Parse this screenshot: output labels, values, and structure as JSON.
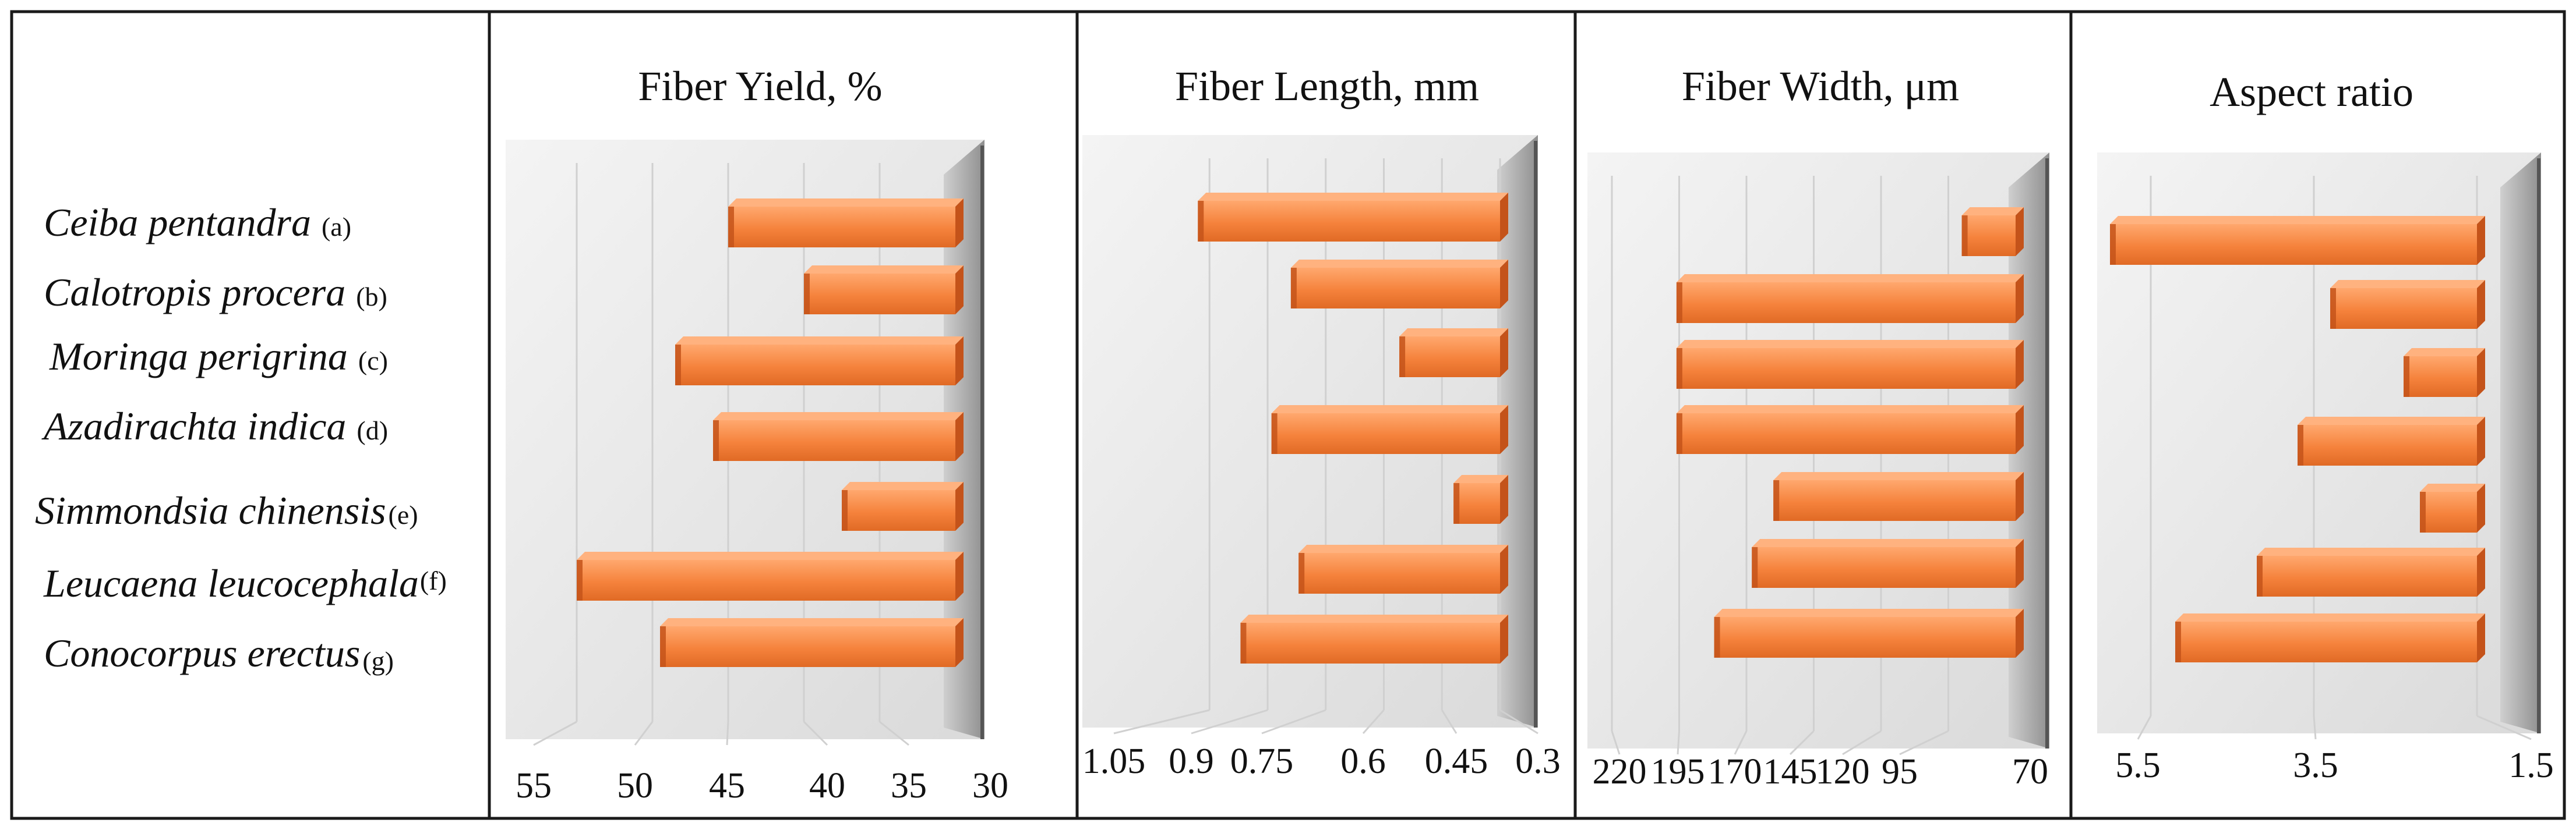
{
  "colors": {
    "bar_front": "#f78a45",
    "bar_top": "#ffb27f",
    "bar_end": "#c4531a",
    "wall_light": "#ececec",
    "wall_dark": "#9a9a9a",
    "frame": "#1a1a1a"
  },
  "species": [
    {
      "name": "Ceiba pentandra",
      "letter": "(a)"
    },
    {
      "name": "Calotropis procera",
      "letter": "(b)"
    },
    {
      "name": "Moringa perigrina",
      "letter": "(c)"
    },
    {
      "name": "Azadirachta indica",
      "letter": "(d)"
    },
    {
      "name": "Simmondsia chinensis",
      "letter": "(e)"
    },
    {
      "name": "Leucaena leucocephala",
      "letter": "(f)"
    },
    {
      "name": "Conocorpus erectus",
      "letter": "(g)"
    }
  ],
  "chart_data": [
    {
      "type": "bar",
      "orientation": "horizontal-3d",
      "title": "Fiber Yield, %",
      "categories": [
        "Ceiba pentandra",
        "Calotropis procera",
        "Moringa perigrina",
        "Azadirachta indica",
        "Simmondsia chinensis",
        "Leucaena leucocephala",
        "Conocorpus erectus"
      ],
      "values": [
        45,
        40,
        48.5,
        46,
        37.5,
        55,
        49.5
      ],
      "xlim": [
        30,
        56
      ],
      "x_reversed": true,
      "tick_values": [
        55,
        50,
        45,
        40,
        35,
        30
      ],
      "tick_labels": [
        "55",
        "50",
        "45",
        "40",
        "35",
        "30"
      ],
      "grid": true
    },
    {
      "type": "bar",
      "orientation": "horizontal-3d",
      "title": "Fiber Length, mm",
      "categories": [
        "Ceiba pentandra",
        "Calotropis procera",
        "Moringa perigrina",
        "Azadirachta indica",
        "Simmondsia chinensis",
        "Leucaena leucocephala",
        "Conocorpus erectus"
      ],
      "values": [
        1.08,
        0.84,
        0.56,
        0.89,
        0.42,
        0.82,
        0.97
      ],
      "xlim": [
        0.3,
        1.09
      ],
      "x_reversed": true,
      "tick_values": [
        1.05,
        0.9,
        0.75,
        0.6,
        0.45,
        0.3
      ],
      "tick_labels": [
        "1.05",
        "0.9",
        "0.75",
        "0.6",
        "0.45",
        "0.3"
      ],
      "grid": true
    },
    {
      "type": "bar",
      "orientation": "horizontal-3d",
      "title": "Fiber Width, μm",
      "categories": [
        "Ceiba pentandra",
        "Calotropis procera",
        "Moringa perigrina",
        "Azadirachta indica",
        "Simmondsia chinensis",
        "Leucaena leucocephala",
        "Conocorpus erectus"
      ],
      "values": [
        90,
        196,
        196,
        196,
        160,
        168,
        182
      ],
      "xlim": [
        70,
        222
      ],
      "x_reversed": true,
      "tick_values": [
        220,
        195,
        170,
        145,
        120,
        95,
        70
      ],
      "tick_labels": [
        "220",
        "195",
        "170",
        "145",
        "120",
        "95",
        "70"
      ],
      "grid": true
    },
    {
      "type": "bar",
      "orientation": "horizontal-3d",
      "title": "Aspect ratio",
      "categories": [
        "Ceiba pentandra",
        "Calotropis procera",
        "Moringa perigrina",
        "Azadirachta indica",
        "Simmondsia chinensis",
        "Leucaena leucocephala",
        "Conocorpus erectus"
      ],
      "values": [
        6.0,
        3.3,
        2.4,
        3.7,
        2.2,
        4.2,
        5.2
      ],
      "xlim": [
        1.5,
        6.2
      ],
      "x_reversed": true,
      "tick_values": [
        5.5,
        3.5,
        1.5
      ],
      "tick_labels": [
        "5.5",
        "3.5",
        "1.5"
      ],
      "grid": true
    }
  ]
}
